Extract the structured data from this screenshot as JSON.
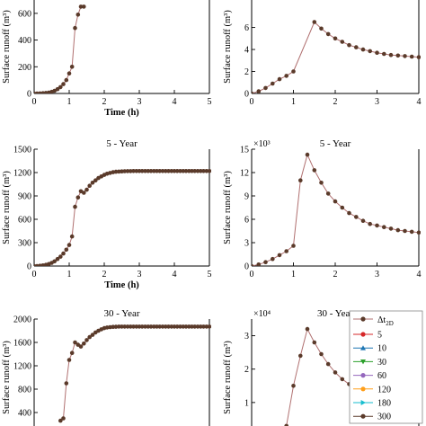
{
  "legend": {
    "title_main": "Δt",
    "title_sub": "2D",
    "items": [
      {
        "label": "5",
        "color": "#d62728",
        "marker": "circle"
      },
      {
        "label": "10",
        "color": "#1f77b4",
        "marker": "triangle-up"
      },
      {
        "label": "30",
        "color": "#2ca02c",
        "marker": "triangle-down"
      },
      {
        "label": "60",
        "color": "#9467bd",
        "marker": "circle"
      },
      {
        "label": "120",
        "color": "#ff9f1a",
        "marker": "circle"
      },
      {
        "label": "180",
        "color": "#17becf",
        "marker": "triangle-right"
      },
      {
        "label": "300",
        "color": "#5a3a2a",
        "marker": "circle"
      }
    ]
  },
  "chart_data": [
    {
      "id": "top-left",
      "type": "line",
      "title": "",
      "xlabel": "Time (h)",
      "ylabel": "Surface runoff (m³)",
      "multiplier": "",
      "xlim": [
        0,
        5
      ],
      "xticks": [
        0,
        1,
        2,
        3,
        4,
        5
      ],
      "ylim": [
        0,
        700
      ],
      "yticks": [
        0,
        200,
        400,
        600
      ],
      "line_color": "#b07070",
      "marker_color": "#5a3a2a",
      "x": [
        0.0,
        0.083,
        0.167,
        0.25,
        0.333,
        0.417,
        0.5,
        0.583,
        0.667,
        0.75,
        0.833,
        0.917,
        1.0,
        1.083,
        1.167,
        1.25,
        1.333,
        1.417
      ],
      "y": [
        0,
        0,
        1,
        2,
        4,
        7,
        12,
        20,
        32,
        48,
        70,
        100,
        150,
        200,
        490,
        590,
        650,
        650
      ]
    },
    {
      "id": "top-right",
      "type": "line",
      "title": "",
      "xlabel": "",
      "ylabel": "Surface runoff (m³)",
      "multiplier": "",
      "xlim": [
        0,
        4
      ],
      "xticks": [
        0,
        1,
        2,
        3,
        4
      ],
      "ylim": [
        0,
        8.5
      ],
      "yticks": [
        0,
        2,
        4,
        6
      ],
      "line_color": "#b07070",
      "marker_color": "#5a3a2a",
      "x": [
        0.0,
        0.167,
        0.333,
        0.5,
        0.667,
        0.833,
        1.0,
        1.5,
        1.667,
        1.833,
        2.0,
        2.167,
        2.333,
        2.5,
        2.667,
        2.833,
        3.0,
        3.167,
        3.333,
        3.5,
        3.667,
        3.833,
        4.0
      ],
      "y": [
        0,
        0.2,
        0.5,
        0.9,
        1.3,
        1.6,
        2.0,
        6.5,
        5.9,
        5.4,
        5.0,
        4.7,
        4.4,
        4.2,
        4.0,
        3.85,
        3.7,
        3.6,
        3.5,
        3.45,
        3.4,
        3.35,
        3.3
      ]
    },
    {
      "id": "mid-left",
      "type": "line",
      "title": "5 - Year",
      "xlabel": "Time (h)",
      "ylabel": "Surface runoff (m³)",
      "multiplier": "",
      "xlim": [
        0,
        5
      ],
      "xticks": [
        0,
        1,
        2,
        3,
        4,
        5
      ],
      "ylim": [
        0,
        1500
      ],
      "yticks": [
        0,
        300,
        600,
        900,
        1200,
        1500
      ],
      "line_color": "#b07070",
      "marker_color": "#5a3a2a",
      "x": [
        0.0,
        0.083,
        0.167,
        0.25,
        0.333,
        0.417,
        0.5,
        0.583,
        0.667,
        0.75,
        0.833,
        0.917,
        1.0,
        1.083,
        1.167,
        1.25,
        1.333,
        1.417,
        1.5,
        1.583,
        1.667,
        1.75,
        1.833,
        1.917,
        2.0,
        2.083,
        2.167,
        2.25,
        2.333,
        2.417,
        2.5,
        2.583,
        2.667,
        2.75,
        2.833,
        2.917,
        3.0,
        3.083,
        3.167,
        3.25,
        3.333,
        3.417,
        3.5,
        3.583,
        3.667,
        3.75,
        3.833,
        3.917,
        4.0,
        4.083,
        4.167,
        4.25,
        4.333,
        4.417,
        4.5,
        4.583,
        4.667,
        4.75,
        4.833,
        4.917,
        5.0
      ],
      "y": [
        0,
        0,
        3,
        8,
        15,
        25,
        40,
        60,
        90,
        120,
        160,
        210,
        270,
        380,
        760,
        880,
        960,
        940,
        980,
        1030,
        1070,
        1100,
        1130,
        1150,
        1170,
        1185,
        1195,
        1205,
        1210,
        1213,
        1215,
        1217,
        1218,
        1219,
        1220,
        1220,
        1220,
        1220,
        1220,
        1220,
        1220,
        1220,
        1220,
        1220,
        1220,
        1220,
        1220,
        1220,
        1220,
        1220,
        1220,
        1220,
        1220,
        1220,
        1220,
        1220,
        1220,
        1220,
        1220,
        1220,
        1220
      ]
    },
    {
      "id": "mid-right",
      "type": "line",
      "title": "5 - Year",
      "xlabel": "",
      "ylabel": "Surface runoff (m³)",
      "multiplier": "×10³",
      "xlim": [
        0,
        4
      ],
      "xticks": [
        0,
        1,
        2,
        3,
        4
      ],
      "ylim": [
        0,
        15
      ],
      "yticks": [
        0,
        3,
        6,
        9,
        12,
        15
      ],
      "line_color": "#b07070",
      "marker_color": "#5a3a2a",
      "x": [
        0.0,
        0.167,
        0.333,
        0.5,
        0.667,
        0.833,
        1.0,
        1.167,
        1.333,
        1.5,
        1.667,
        1.833,
        2.0,
        2.167,
        2.333,
        2.5,
        2.667,
        2.833,
        3.0,
        3.167,
        3.333,
        3.5,
        3.667,
        3.833,
        4.0
      ],
      "y": [
        0,
        0.2,
        0.5,
        0.9,
        1.4,
        1.9,
        2.6,
        11.0,
        14.3,
        12.3,
        10.7,
        9.3,
        8.3,
        7.5,
        6.8,
        6.3,
        5.8,
        5.4,
        5.2,
        5.0,
        4.8,
        4.6,
        4.5,
        4.4,
        4.3
      ]
    },
    {
      "id": "bottom-left",
      "type": "line",
      "title": "30 - Year",
      "xlabel": "",
      "ylabel": "Surface runoff (m³)",
      "multiplier": "",
      "xlim": [
        0,
        5
      ],
      "xticks": [],
      "ylim": [
        0,
        2000
      ],
      "yticks": [
        400,
        800,
        1200,
        1600,
        2000
      ],
      "line_color": "#b07070",
      "marker_color": "#5a3a2a",
      "x": [
        0.75,
        0.833,
        0.917,
        1.0,
        1.083,
        1.167,
        1.25,
        1.333,
        1.417,
        1.5,
        1.583,
        1.667,
        1.75,
        1.833,
        1.917,
        2.0,
        2.083,
        2.167,
        2.25,
        2.333,
        2.417,
        2.5,
        2.583,
        2.667,
        2.75,
        2.833,
        2.917,
        3.0,
        3.083,
        3.167,
        3.25,
        3.333,
        3.417,
        3.5,
        3.583,
        3.667,
        3.75,
        3.833,
        3.917,
        4.0,
        4.083,
        4.167,
        4.25,
        4.333,
        4.417,
        4.5,
        4.583,
        4.667,
        4.75,
        4.833,
        4.917,
        5.0
      ],
      "y": [
        260,
        300,
        900,
        1300,
        1420,
        1600,
        1560,
        1530,
        1580,
        1640,
        1690,
        1730,
        1770,
        1800,
        1825,
        1845,
        1855,
        1862,
        1866,
        1868,
        1870,
        1870,
        1870,
        1870,
        1870,
        1870,
        1870,
        1870,
        1870,
        1870,
        1870,
        1870,
        1870,
        1870,
        1870,
        1870,
        1870,
        1870,
        1870,
        1870,
        1870,
        1870,
        1870,
        1870,
        1870,
        1870,
        1870,
        1870,
        1870,
        1870,
        1870,
        1870
      ]
    },
    {
      "id": "bottom-right",
      "type": "line",
      "title": "30 - Year",
      "xlabel": "",
      "ylabel": "Surface runoff (m³)",
      "multiplier": "×10⁴",
      "xlim": [
        0,
        4
      ],
      "xticks": [],
      "ylim": [
        0,
        3.5
      ],
      "yticks": [
        1,
        2,
        3
      ],
      "line_color": "#b07070",
      "marker_color": "#5a3a2a",
      "x": [
        0.833,
        1.0,
        1.167,
        1.333,
        1.5,
        1.667,
        1.833,
        2.0,
        2.167,
        2.333,
        2.5,
        2.667,
        2.833,
        3.0,
        3.167,
        3.333,
        3.5,
        3.667,
        3.833,
        4.0
      ],
      "y": [
        0.3,
        1.5,
        2.4,
        3.2,
        2.8,
        2.45,
        2.15,
        1.9,
        1.7,
        1.55,
        1.42,
        1.3,
        1.2,
        1.12,
        1.05,
        1.0,
        0.95,
        0.9,
        0.87,
        0.83
      ]
    }
  ]
}
